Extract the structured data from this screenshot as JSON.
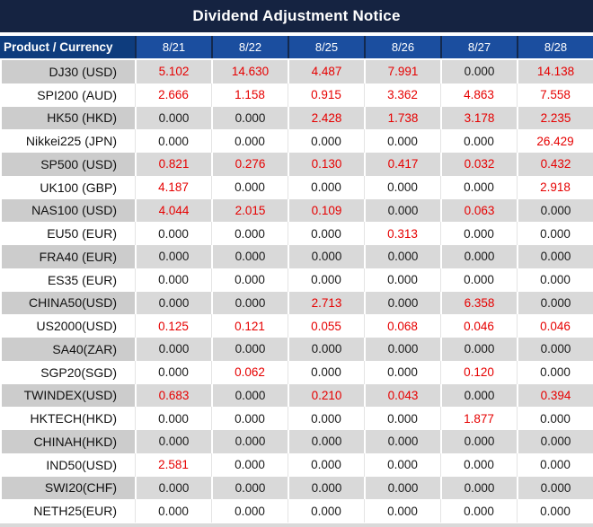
{
  "chart_data": {
    "type": "table",
    "title": "Dividend Adjustment Notice",
    "columns": [
      "Product / Currency",
      "8/21",
      "8/22",
      "8/25",
      "8/26",
      "8/27",
      "8/28"
    ],
    "rows": [
      {
        "product": "DJ30 (USD)",
        "values": [
          "5.102",
          "14.630",
          "4.487",
          "7.991",
          "0.000",
          "14.138"
        ]
      },
      {
        "product": "SPI200 (AUD)",
        "values": [
          "2.666",
          "1.158",
          "0.915",
          "3.362",
          "4.863",
          "7.558"
        ]
      },
      {
        "product": "HK50 (HKD)",
        "values": [
          "0.000",
          "0.000",
          "2.428",
          "1.738",
          "3.178",
          "2.235"
        ]
      },
      {
        "product": "Nikkei225 (JPN)",
        "values": [
          "0.000",
          "0.000",
          "0.000",
          "0.000",
          "0.000",
          "26.429"
        ]
      },
      {
        "product": "SP500 (USD)",
        "values": [
          "0.821",
          "0.276",
          "0.130",
          "0.417",
          "0.032",
          "0.432"
        ]
      },
      {
        "product": "UK100 (GBP)",
        "values": [
          "4.187",
          "0.000",
          "0.000",
          "0.000",
          "0.000",
          "2.918"
        ]
      },
      {
        "product": "NAS100 (USD)",
        "values": [
          "4.044",
          "2.015",
          "0.109",
          "0.000",
          "0.063",
          "0.000"
        ]
      },
      {
        "product": "EU50 (EUR)",
        "values": [
          "0.000",
          "0.000",
          "0.000",
          "0.313",
          "0.000",
          "0.000"
        ]
      },
      {
        "product": "FRA40 (EUR)",
        "values": [
          "0.000",
          "0.000",
          "0.000",
          "0.000",
          "0.000",
          "0.000"
        ]
      },
      {
        "product": "ES35 (EUR)",
        "values": [
          "0.000",
          "0.000",
          "0.000",
          "0.000",
          "0.000",
          "0.000"
        ]
      },
      {
        "product": "CHINA50(USD)",
        "values": [
          "0.000",
          "0.000",
          "2.713",
          "0.000",
          "6.358",
          "0.000"
        ]
      },
      {
        "product": "US2000(USD)",
        "values": [
          "0.125",
          "0.121",
          "0.055",
          "0.068",
          "0.046",
          "0.046"
        ]
      },
      {
        "product": "SA40(ZAR)",
        "values": [
          "0.000",
          "0.000",
          "0.000",
          "0.000",
          "0.000",
          "0.000"
        ]
      },
      {
        "product": "SGP20(SGD)",
        "values": [
          "0.000",
          "0.062",
          "0.000",
          "0.000",
          "0.120",
          "0.000"
        ]
      },
      {
        "product": "TWINDEX(USD)",
        "values": [
          "0.683",
          "0.000",
          "0.210",
          "0.043",
          "0.000",
          "0.394"
        ]
      },
      {
        "product": "HKTECH(HKD)",
        "values": [
          "0.000",
          "0.000",
          "0.000",
          "0.000",
          "1.877",
          "0.000"
        ]
      },
      {
        "product": "CHINAH(HKD)",
        "values": [
          "0.000",
          "0.000",
          "0.000",
          "0.000",
          "0.000",
          "0.000"
        ]
      },
      {
        "product": "IND50(USD)",
        "values": [
          "2.581",
          "0.000",
          "0.000",
          "0.000",
          "0.000",
          "0.000"
        ]
      },
      {
        "product": "SWI20(CHF)",
        "values": [
          "0.000",
          "0.000",
          "0.000",
          "0.000",
          "0.000",
          "0.000"
        ]
      },
      {
        "product": "NETH25(EUR)",
        "values": [
          "0.000",
          "0.000",
          "0.000",
          "0.000",
          "0.000",
          "0.000"
        ]
      }
    ],
    "layout_hints": {
      "value_color_rule": "non-zero values rendered red, zero values black",
      "row_striping": "odd rows gray, even rows white"
    }
  },
  "colors": {
    "title_bg": "#152341",
    "header_product_bg": "#0e3c7d",
    "header_date_bg": "#1b4e9f",
    "row_gray_product": "#cccccc",
    "row_gray_value": "#d9d9d9",
    "value_red": "#e60000",
    "value_black": "#1a1a1a"
  }
}
